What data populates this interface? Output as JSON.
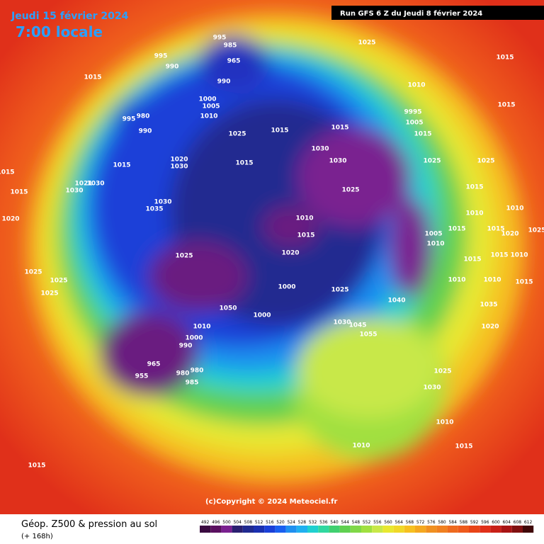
{
  "header": {
    "date": "Jeudi 15 février 2024",
    "time": "7:00 locale",
    "run": "Run GFS 6 Z du Jeudi 8 février 2024"
  },
  "copyright": "(c)Copyright © 2024 Meteociel.fr",
  "footer": {
    "title": "Géop. Z500 & pression au sol",
    "subtitle": "(+ 168h)"
  },
  "isobars": [
    995,
    985,
    965,
    995,
    990,
    1015,
    990,
    1025,
    1015,
    1010,
    1015,
    980,
    995,
    990,
    1000,
    1005,
    1010,
    9995,
    1005,
    1015,
    1025,
    1015,
    1015,
    1030,
    1030,
    1025,
    1025,
    1015,
    1020,
    1030,
    1015,
    1021,
    1030,
    1030,
    1015,
    1015,
    1025,
    1015,
    1030,
    1035,
    1010,
    1015,
    1010,
    1010,
    1020,
    1005,
    1010,
    1015,
    1015,
    1020,
    1025,
    1025,
    1020,
    1015,
    1010,
    1015,
    1025,
    1025,
    1025,
    1000,
    1010,
    1010,
    1015,
    1025,
    1040,
    1035,
    1050,
    1000,
    1030,
    1045,
    1055,
    1020,
    1010,
    1000,
    990,
    965,
    955,
    980,
    980,
    985,
    1025,
    1030,
    1010,
    1010,
    1015,
    1015
  ],
  "colorbar": {
    "ticks": [
      492,
      496,
      500,
      504,
      508,
      512,
      516,
      520,
      524,
      528,
      532,
      536,
      540,
      544,
      548,
      552,
      556,
      560,
      564,
      568,
      572,
      576,
      580,
      584,
      588,
      592,
      596,
      600,
      604,
      608,
      612
    ],
    "colors": [
      "#3a0a40",
      "#5a1060",
      "#7a2090",
      "#2a1f70",
      "#202a90",
      "#1a30b0",
      "#1a40d8",
      "#1a60f0",
      "#1f90f0",
      "#20b0f0",
      "#20d0d0",
      "#30d8a0",
      "#40d070",
      "#60d050",
      "#80d848",
      "#a0e040",
      "#c8e848",
      "#e8e830",
      "#f0d828",
      "#f6c020",
      "#f4a820",
      "#f09020",
      "#f08020",
      "#ee6a1e",
      "#ee5a1c",
      "#e84418",
      "#e0301a",
      "#c82018",
      "#a81414",
      "#801010",
      "#400808"
    ]
  }
}
